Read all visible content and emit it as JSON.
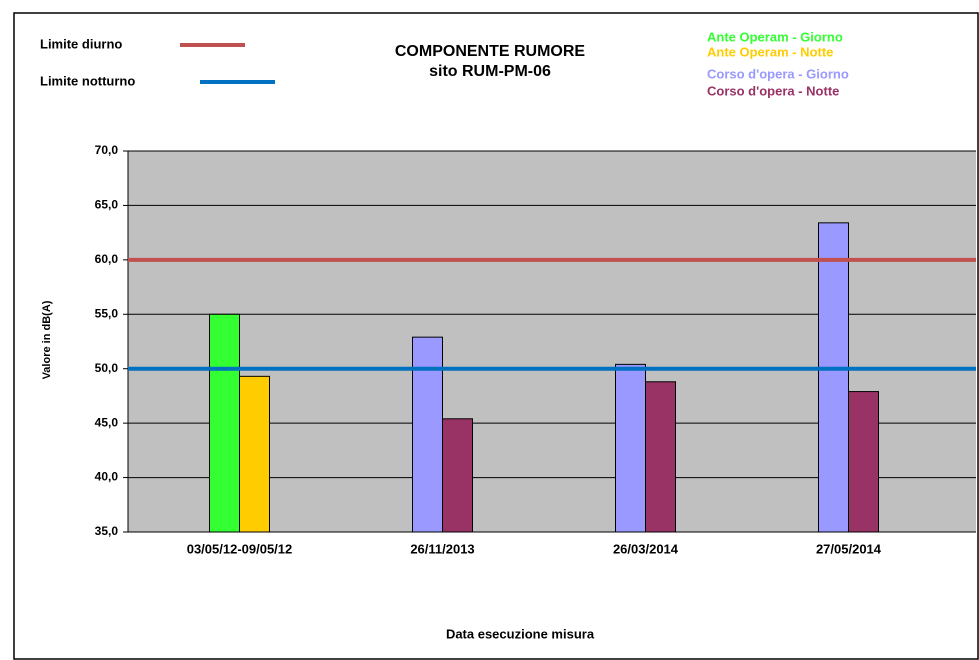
{
  "chart_data": {
    "type": "bar",
    "title": "COMPONENTE RUMORE",
    "subtitle": "sito RUM-PM-06",
    "y_label": "Valore in dB(A)",
    "x_label": "Data esecuzione misura",
    "categories": [
      "03/05/12-09/05/12",
      "26/11/2013",
      "26/03/2014",
      "27/05/2014"
    ],
    "series": [
      {
        "name": "Ante Operam - Giorno",
        "color": "#33ff33",
        "values": [
          55.0,
          null,
          null,
          null
        ]
      },
      {
        "name": "Ante Operam - Notte",
        "color": "#ffcc00",
        "values": [
          49.3,
          null,
          null,
          null
        ]
      },
      {
        "name": "Corso d'opera - Giorno",
        "color": "#9999ff",
        "values": [
          null,
          52.9,
          50.4,
          63.4
        ]
      },
      {
        "name": "Corso d'opera - Notte",
        "color": "#993366",
        "values": [
          null,
          45.4,
          48.8,
          47.9
        ]
      }
    ],
    "reference_lines": [
      {
        "name": "Limite diurno",
        "value": 60,
        "color": "#c0504d"
      },
      {
        "name": "Limite notturno",
        "value": 50,
        "color": "#0070c0"
      }
    ],
    "ylim": [
      35,
      70
    ],
    "yticks": [
      {
        "value": 35,
        "label": "35,0"
      },
      {
        "value": 40,
        "label": "40,0"
      },
      {
        "value": 45,
        "label": "45,0"
      },
      {
        "value": 50,
        "label": "50,0"
      },
      {
        "value": 55,
        "label": "55,0"
      },
      {
        "value": 60,
        "label": "60,0"
      },
      {
        "value": 65,
        "label": "65,0"
      },
      {
        "value": 70,
        "label": "70,0"
      }
    ],
    "grid": true
  }
}
